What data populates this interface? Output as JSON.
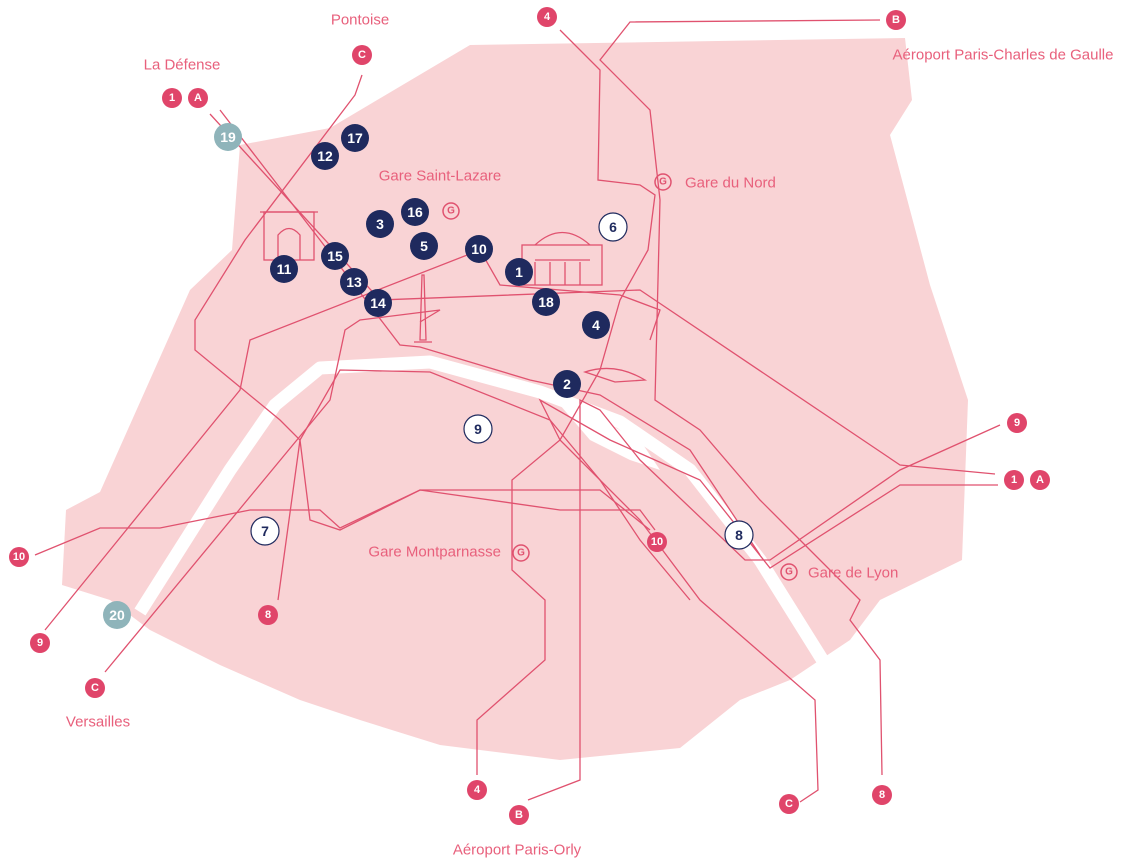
{
  "places": [
    {
      "label": "Pontoise"
    },
    {
      "label": "La Défense"
    },
    {
      "label": "Gare Saint-Lazare",
      "icon": "G"
    },
    {
      "label": "Gare du Nord",
      "icon": "G"
    },
    {
      "label": "Aéroport Paris-Charles de Gaulle"
    },
    {
      "label": "Gare Montparnasse",
      "icon": "G"
    },
    {
      "label": "Gare de Lyon",
      "icon": "G"
    },
    {
      "label": "Versailles"
    },
    {
      "label": "Aéroport Paris-Orly"
    }
  ],
  "terminals": [
    {
      "label": "1"
    },
    {
      "label": "A"
    },
    {
      "label": "C"
    },
    {
      "label": "4"
    },
    {
      "label": "B"
    },
    {
      "label": "9"
    },
    {
      "label": "1"
    },
    {
      "label": "A"
    },
    {
      "label": "10"
    },
    {
      "label": "9"
    },
    {
      "label": "C"
    },
    {
      "label": "8"
    },
    {
      "label": "10"
    },
    {
      "label": "4"
    },
    {
      "label": "B"
    },
    {
      "label": "C"
    },
    {
      "label": "8"
    }
  ],
  "arrondissements": [
    {
      "label": "1",
      "style": "filled"
    },
    {
      "label": "2",
      "style": "filled"
    },
    {
      "label": "3",
      "style": "filled"
    },
    {
      "label": "4",
      "style": "filled"
    },
    {
      "label": "5",
      "style": "filled"
    },
    {
      "label": "6",
      "style": "outline"
    },
    {
      "label": "7",
      "style": "outline"
    },
    {
      "label": "8",
      "style": "outline"
    },
    {
      "label": "9",
      "style": "outline"
    },
    {
      "label": "10",
      "style": "filled"
    },
    {
      "label": "11",
      "style": "filled"
    },
    {
      "label": "12",
      "style": "filled"
    },
    {
      "label": "13",
      "style": "filled"
    },
    {
      "label": "14",
      "style": "filled"
    },
    {
      "label": "15",
      "style": "filled"
    },
    {
      "label": "16",
      "style": "filled"
    },
    {
      "label": "17",
      "style": "filled"
    },
    {
      "label": "18",
      "style": "filled"
    },
    {
      "label": "19",
      "style": "muted"
    },
    {
      "label": "20",
      "style": "muted"
    }
  ]
}
